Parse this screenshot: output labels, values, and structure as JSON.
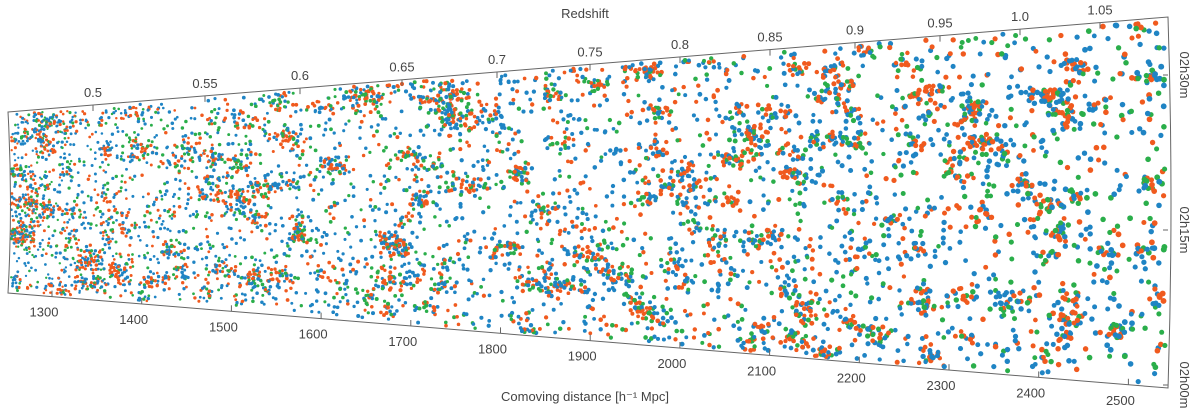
{
  "chart_data": {
    "type": "scatter",
    "title": "",
    "top_axis_label": "Redshift",
    "bottom_axis_label": "Comoving distance [h⁻¹ Mpc]",
    "redshift_ticks": [
      "0.5",
      "0.55",
      "0.6",
      "0.65",
      "0.7",
      "0.75",
      "0.8",
      "0.85",
      "0.9",
      "0.95",
      "1.0",
      "1.05"
    ],
    "distance_ticks": [
      "1300",
      "1400",
      "1500",
      "1600",
      "1700",
      "1800",
      "1900",
      "2000",
      "2100",
      "2200",
      "2300",
      "2400",
      "2500"
    ],
    "ra_ticks": [
      "02h30m",
      "02h15m",
      "02h00m"
    ],
    "distance_range": [
      1250,
      2550
    ],
    "redshift_range": [
      0.45,
      1.08
    ],
    "series_colors": [
      "#1f84c4",
      "#f05a1e",
      "#2aae4a"
    ],
    "grid": false,
    "legend": "none"
  }
}
